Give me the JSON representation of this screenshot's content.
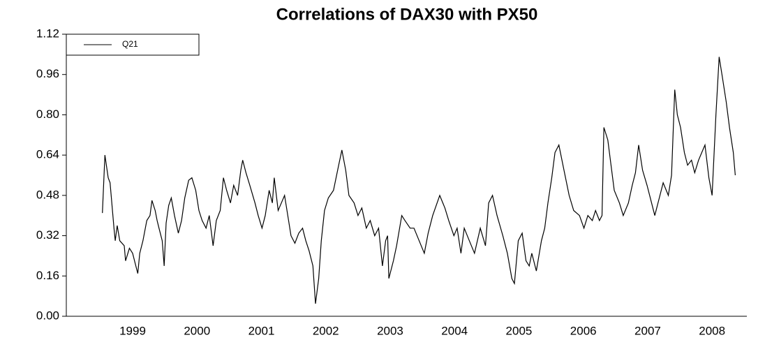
{
  "chart_data": {
    "type": "line",
    "title": "Correlations of DAX30 with PX50",
    "xlim": [
      1998.47,
      2009.04
    ],
    "xticks": [
      {
        "value": 1999.5,
        "label": "1999"
      },
      {
        "value": 2000.5,
        "label": "2000"
      },
      {
        "value": 2001.5,
        "label": "2001"
      },
      {
        "value": 2002.5,
        "label": "2002"
      },
      {
        "value": 2003.5,
        "label": "2003"
      },
      {
        "value": 2004.5,
        "label": "2004"
      },
      {
        "value": 2005.5,
        "label": "2005"
      },
      {
        "value": 2006.5,
        "label": "2006"
      },
      {
        "value": 2007.5,
        "label": "2007"
      },
      {
        "value": 2008.5,
        "label": "2008"
      }
    ],
    "ylim": [
      0,
      1.12
    ],
    "yticks": [
      {
        "value": 0,
        "label": "0.00"
      },
      0.16,
      0.32,
      0.48,
      0.64,
      {
        "value": 0.8,
        "label": "0.80"
      },
      0.96,
      1.12
    ],
    "legend": "top-left",
    "x": [
      1999.03,
      1999.07,
      1999.12,
      1999.15,
      1999.21,
      1999.23,
      1999.26,
      1999.3,
      1999.37,
      1999.39,
      1999.45,
      1999.5,
      1999.55,
      1999.58,
      1999.61,
      1999.66,
      1999.72,
      1999.77,
      1999.8,
      1999.85,
      1999.88,
      1999.91,
      1999.96,
      1999.99,
      2000.02,
      2000.06,
      2000.1,
      2000.15,
      2000.21,
      2000.26,
      2000.31,
      2000.37,
      2000.42,
      2000.48,
      2000.53,
      2000.58,
      2000.64,
      2000.69,
      2000.75,
      2000.8,
      2000.86,
      2000.91,
      2000.96,
      2001.02,
      2001.07,
      2001.13,
      2001.18,
      2001.21,
      2001.26,
      2001.32,
      2001.4,
      2001.45,
      2001.51,
      2001.56,
      2001.62,
      2001.67,
      2001.7,
      2001.76,
      2001.81,
      2001.86,
      2001.91,
      2001.96,
      2002.02,
      2002.08,
      2002.14,
      2002.19,
      2002.24,
      2002.3,
      2002.34,
      2002.39,
      2002.43,
      2002.48,
      2002.54,
      2002.62,
      2002.7,
      2002.75,
      2002.81,
      2002.86,
      2002.94,
      2003.0,
      2003.06,
      2003.13,
      2003.19,
      2003.26,
      2003.32,
      2003.38,
      2003.43,
      2003.46,
      2003.48,
      2003.55,
      2003.6,
      2003.68,
      2003.73,
      2003.81,
      2003.87,
      2003.95,
      2004.03,
      2004.09,
      2004.16,
      2004.27,
      2004.35,
      2004.41,
      2004.49,
      2004.54,
      2004.6,
      2004.65,
      2004.73,
      2004.81,
      2004.9,
      2004.98,
      2005.03,
      2005.09,
      2005.16,
      2005.25,
      2005.32,
      2005.39,
      2005.43,
      2005.49,
      2005.55,
      2005.61,
      2005.66,
      2005.7,
      2005.77,
      2005.85,
      2005.9,
      2005.95,
      2006.01,
      2006.06,
      2006.12,
      2006.2,
      2006.28,
      2006.35,
      2006.44,
      2006.51,
      2006.57,
      2006.64,
      2006.69,
      2006.75,
      2006.79,
      2006.82,
      2006.88,
      2006.93,
      2006.98,
      2007.06,
      2007.12,
      2007.2,
      2007.26,
      2007.31,
      2007.36,
      2007.42,
      2007.49,
      2007.56,
      2007.61,
      2007.69,
      2007.74,
      2007.82,
      2007.87,
      2007.92,
      2007.96,
      2008.01,
      2008.07,
      2008.12,
      2008.18,
      2008.23,
      2008.29,
      2008.34,
      2008.39,
      2008.45,
      2008.5,
      2008.56,
      2008.61,
      2008.66,
      2008.72,
      2008.77,
      2008.83,
      2008.86
    ],
    "series": [
      {
        "name": "Q21",
        "color": "#000000",
        "values": [
          0.41,
          0.64,
          0.55,
          0.53,
          0.35,
          0.3,
          0.36,
          0.3,
          0.28,
          0.22,
          0.27,
          0.25,
          0.2,
          0.17,
          0.25,
          0.3,
          0.38,
          0.4,
          0.46,
          0.42,
          0.38,
          0.35,
          0.3,
          0.2,
          0.37,
          0.44,
          0.47,
          0.4,
          0.33,
          0.38,
          0.47,
          0.54,
          0.55,
          0.5,
          0.42,
          0.38,
          0.35,
          0.4,
          0.28,
          0.38,
          0.42,
          0.55,
          0.5,
          0.45,
          0.52,
          0.48,
          0.58,
          0.62,
          0.57,
          0.52,
          0.45,
          0.4,
          0.35,
          0.4,
          0.5,
          0.45,
          0.55,
          0.42,
          0.45,
          0.48,
          0.4,
          0.32,
          0.29,
          0.33,
          0.35,
          0.3,
          0.26,
          0.2,
          0.05,
          0.15,
          0.3,
          0.42,
          0.47,
          0.5,
          0.6,
          0.66,
          0.58,
          0.48,
          0.45,
          0.4,
          0.43,
          0.35,
          0.38,
          0.32,
          0.35,
          0.2,
          0.3,
          0.32,
          0.15,
          0.22,
          0.28,
          0.4,
          0.38,
          0.35,
          0.35,
          0.3,
          0.25,
          0.33,
          0.4,
          0.48,
          0.43,
          0.38,
          0.32,
          0.35,
          0.25,
          0.35,
          0.3,
          0.25,
          0.35,
          0.28,
          0.45,
          0.48,
          0.4,
          0.32,
          0.25,
          0.15,
          0.13,
          0.3,
          0.33,
          0.22,
          0.2,
          0.25,
          0.18,
          0.3,
          0.35,
          0.45,
          0.55,
          0.65,
          0.68,
          0.58,
          0.48,
          0.42,
          0.4,
          0.35,
          0.4,
          0.38,
          0.42,
          0.38,
          0.4,
          0.75,
          0.7,
          0.6,
          0.5,
          0.45,
          0.4,
          0.45,
          0.52,
          0.57,
          0.68,
          0.58,
          0.52,
          0.45,
          0.4,
          0.48,
          0.53,
          0.48,
          0.56,
          0.9,
          0.8,
          0.75,
          0.65,
          0.6,
          0.62,
          0.57,
          0.62,
          0.65,
          0.68,
          0.55,
          0.48,
          0.8,
          1.03,
          0.95,
          0.85,
          0.75,
          0.65,
          0.56
        ]
      }
    ]
  }
}
